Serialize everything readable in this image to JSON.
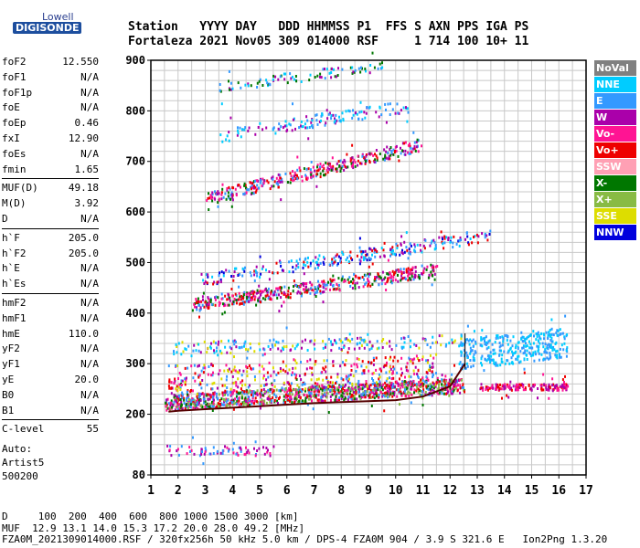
{
  "logo": {
    "line1": "Lowell",
    "line2": "DIGISONDE"
  },
  "header": {
    "labels": "Station   YYYY DAY   DDD HHMMSS P1  FFS S AXN PPS IGA PS",
    "values": "Fortaleza 2021 Nov05 309 014000 RSF     1 714 100 10+ 11"
  },
  "params": [
    {
      "label": "foF2",
      "value": "12.550"
    },
    {
      "label": "foF1",
      "value": "N/A"
    },
    {
      "label": "foF1p",
      "value": "N/A"
    },
    {
      "label": "foE",
      "value": "N/A"
    },
    {
      "label": "foEp",
      "value": "0.46"
    },
    {
      "label": "fxI",
      "value": "12.90"
    },
    {
      "label": "foEs",
      "value": "N/A"
    },
    {
      "label": "fmin",
      "value": "1.65"
    },
    {
      "label": "MUF(D)",
      "value": "49.18"
    },
    {
      "label": "M(D)",
      "value": "3.92"
    },
    {
      "label": "D",
      "value": "N/A"
    },
    {
      "label": "h`F",
      "value": "205.0"
    },
    {
      "label": "h`F2",
      "value": "205.0"
    },
    {
      "label": "h`E",
      "value": "N/A"
    },
    {
      "label": "h`Es",
      "value": "N/A"
    },
    {
      "label": "hmF2",
      "value": "N/A"
    },
    {
      "label": "hmF1",
      "value": "N/A"
    },
    {
      "label": "hmE",
      "value": "110.0"
    },
    {
      "label": "yF2",
      "value": "N/A"
    },
    {
      "label": "yF1",
      "value": "N/A"
    },
    {
      "label": "yE",
      "value": "20.0"
    },
    {
      "label": "B0",
      "value": "N/A"
    },
    {
      "label": "B1",
      "value": "N/A"
    },
    {
      "label": "C-level",
      "value": "55"
    }
  ],
  "auto": {
    "line1": "Auto:",
    "line2": "Artist5",
    "line3": "500200"
  },
  "legend": [
    {
      "label": "NoVal",
      "color": "#808080"
    },
    {
      "label": "NNE",
      "color": "#00ccff"
    },
    {
      "label": "E",
      "color": "#3399ff"
    },
    {
      "label": "W",
      "color": "#aa00aa"
    },
    {
      "label": "Vo-",
      "color": "#ff1493"
    },
    {
      "label": "Vo+",
      "color": "#ee0000"
    },
    {
      "label": "SSW",
      "color": "#ffa0b4"
    },
    {
      "label": "X-",
      "color": "#007700"
    },
    {
      "label": "X+",
      "color": "#88bb44"
    },
    {
      "label": "SSE",
      "color": "#dddd00"
    },
    {
      "label": "NNW",
      "color": "#0000dd"
    }
  ],
  "chart_data": {
    "type": "scatter",
    "xlim": [
      1,
      17
    ],
    "ylim": [
      80,
      900
    ],
    "x_ticks": [
      1,
      2,
      3,
      4,
      5,
      6,
      7,
      8,
      9,
      10,
      11,
      12,
      13,
      14,
      15,
      16,
      17
    ],
    "y_ticks": [
      80,
      200,
      300,
      400,
      500,
      600,
      700,
      800,
      900
    ],
    "grid": true,
    "trace_color": "#550000",
    "trace": [
      {
        "x": 1.65,
        "y": 205
      },
      {
        "x": 2.0,
        "y": 207
      },
      {
        "x": 3.0,
        "y": 210
      },
      {
        "x": 4.0,
        "y": 213
      },
      {
        "x": 5.0,
        "y": 216
      },
      {
        "x": 6.0,
        "y": 219
      },
      {
        "x": 7.0,
        "y": 222
      },
      {
        "x": 8.0,
        "y": 224
      },
      {
        "x": 9.0,
        "y": 226
      },
      {
        "x": 10.0,
        "y": 228
      },
      {
        "x": 11.0,
        "y": 235
      },
      {
        "x": 12.0,
        "y": 255
      },
      {
        "x": 12.55,
        "y": 300
      }
    ],
    "echo_bands": [
      {
        "x0": 1.5,
        "x1": 12.5,
        "y0": 210,
        "y1": 240,
        "rise": 35,
        "n": 1100,
        "colors": [
          "#ee0000",
          "#ff1493",
          "#aa00aa",
          "#88bb44",
          "#007700",
          "#3399ff"
        ]
      },
      {
        "x0": 1.6,
        "x1": 11.5,
        "y0": 240,
        "y1": 300,
        "rise": 20,
        "n": 420,
        "colors": [
          "#ee0000",
          "#ff1493",
          "#aa00aa",
          "#3399ff",
          "#dddd00"
        ]
      },
      {
        "x0": 1.7,
        "x1": 12.5,
        "y0": 320,
        "y1": 345,
        "rise": 15,
        "n": 200,
        "colors": [
          "#3399ff",
          "#00ccff",
          "#aa00aa",
          "#dddd00"
        ]
      },
      {
        "x0": 2.5,
        "x1": 11.5,
        "y0": 405,
        "y1": 430,
        "rise": 70,
        "n": 480,
        "colors": [
          "#ee0000",
          "#ff1493",
          "#aa00aa",
          "#007700",
          "#3399ff"
        ]
      },
      {
        "x0": 2.8,
        "x1": 13.5,
        "y0": 455,
        "y1": 480,
        "rise": 90,
        "n": 280,
        "colors": [
          "#3399ff",
          "#00ccff",
          "#aa00aa",
          "#ee0000",
          "#0000dd"
        ]
      },
      {
        "x0": 3.0,
        "x1": 11.0,
        "y0": 615,
        "y1": 640,
        "rise": 110,
        "n": 360,
        "colors": [
          "#ee0000",
          "#ff1493",
          "#aa00aa",
          "#007700",
          "#3399ff"
        ]
      },
      {
        "x0": 3.5,
        "x1": 10.5,
        "y0": 740,
        "y1": 765,
        "rise": 60,
        "n": 140,
        "colors": [
          "#3399ff",
          "#00ccff",
          "#aa00aa"
        ]
      },
      {
        "x0": 3.5,
        "x1": 9.5,
        "y0": 840,
        "y1": 860,
        "rise": 40,
        "n": 90,
        "colors": [
          "#3399ff",
          "#00ccff",
          "#aa00aa",
          "#007700"
        ]
      },
      {
        "x0": 12.3,
        "x1": 16.3,
        "y0": 290,
        "y1": 350,
        "rise": 25,
        "n": 340,
        "colors": [
          "#3399ff",
          "#00ccff"
        ]
      },
      {
        "x0": 13.0,
        "x1": 16.3,
        "y0": 250,
        "y1": 262,
        "rise": 0,
        "n": 160,
        "colors": [
          "#aa00aa",
          "#ff1493",
          "#ee0000"
        ]
      },
      {
        "x0": 1.5,
        "x1": 5.5,
        "y0": 120,
        "y1": 140,
        "rise": 0,
        "n": 70,
        "colors": [
          "#3399ff",
          "#aa00aa",
          "#ff1493"
        ]
      }
    ]
  },
  "footer": {
    "line1": "D     100  200  400  600  800 1000 1500 3000 [km]",
    "line2": "MUF  12.9 13.1 14.0 15.3 17.2 20.0 28.0 49.2 [MHz]",
    "line3": "FZA0M_2021309014000.RSF / 320fx256h 50 kHz 5.0 km / DPS-4 FZA0M 904 / 3.9 S 321.6 E   Ion2Png 1.3.20"
  }
}
